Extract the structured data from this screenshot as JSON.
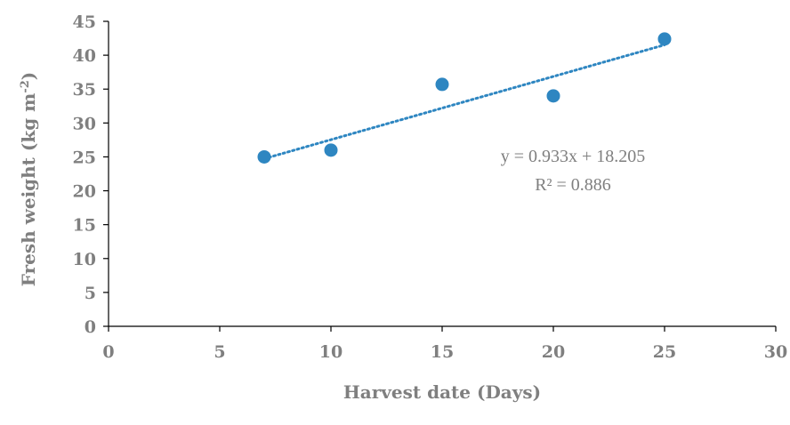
{
  "chart_data": {
    "type": "scatter",
    "title": "",
    "xlabel": "Harvest date (Days)",
    "ylabel_main": "Fresh weight (kg m",
    "ylabel_sup": "-2",
    "ylabel_end": ")",
    "xlim": [
      0,
      30
    ],
    "ylim": [
      0,
      45
    ],
    "xticks": [
      0,
      5,
      10,
      15,
      20,
      25,
      30
    ],
    "yticks": [
      0,
      5,
      10,
      15,
      20,
      25,
      30,
      35,
      40,
      45
    ],
    "grid": false,
    "points": [
      {
        "x": 7,
        "y": 25.0
      },
      {
        "x": 10,
        "y": 26.0
      },
      {
        "x": 15,
        "y": 35.7
      },
      {
        "x": 20,
        "y": 34.0
      },
      {
        "x": 25,
        "y": 42.4
      }
    ],
    "trendline": {
      "type": "linear",
      "slope": 0.933,
      "intercept": 18.205,
      "x_range": [
        7,
        25
      ],
      "equation_label": "y = 0.933x + 18.205",
      "r2_label": "R² = 0.886"
    },
    "colors": {
      "points": "#2e86c1",
      "trendline": "#2e86c1"
    }
  }
}
